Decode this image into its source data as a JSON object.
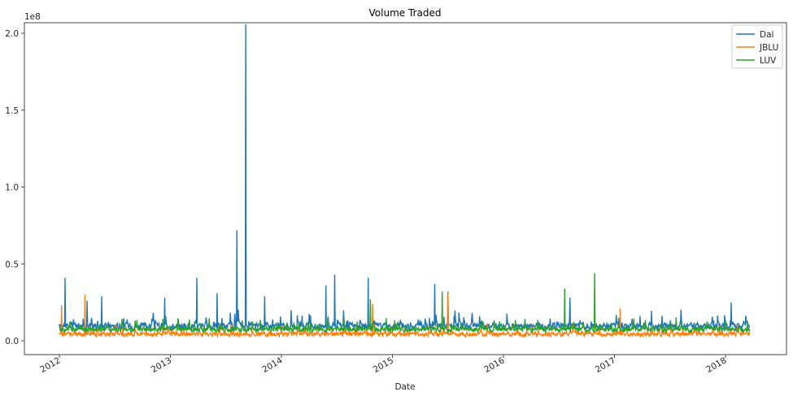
{
  "chart_data": {
    "type": "line",
    "title": "Volume Traded",
    "xlabel": "Date",
    "ylabel": "",
    "y_scale_label": "1e8",
    "ylim": [
      -0.1,
      2.18
    ],
    "xlim": [
      "2011-10",
      "2018-07"
    ],
    "yticks": [
      "0.0",
      "0.5",
      "1.0",
      "1.5",
      "2.0"
    ],
    "xticks": [
      "2012",
      "2013",
      "2014",
      "2015",
      "2016",
      "2017",
      "2018"
    ],
    "grid": false,
    "legend_position": "upper right",
    "series": [
      {
        "name": "Dal",
        "color": "#1f77b4",
        "baseline": 0.09,
        "noise": 0.06,
        "spikes": [
          [
            2012.05,
            0.41
          ],
          [
            2012.25,
            0.26
          ],
          [
            2012.38,
            0.29
          ],
          [
            2012.95,
            0.28
          ],
          [
            2013.24,
            0.41
          ],
          [
            2013.42,
            0.31
          ],
          [
            2013.6,
            0.72
          ],
          [
            2013.68,
            2.06
          ],
          [
            2013.85,
            0.29
          ],
          [
            2014.4,
            0.36
          ],
          [
            2014.48,
            0.43
          ],
          [
            2014.78,
            0.41
          ],
          [
            2015.38,
            0.37
          ],
          [
            2015.5,
            0.32
          ],
          [
            2016.6,
            0.28
          ],
          [
            2018.05,
            0.25
          ]
        ]
      },
      {
        "name": "JBLU",
        "color": "#ff7f0e",
        "baseline": 0.04,
        "noise": 0.04,
        "spikes": [
          [
            2012.02,
            0.23
          ],
          [
            2012.23,
            0.3
          ],
          [
            2014.82,
            0.24
          ],
          [
            2015.5,
            0.31
          ],
          [
            2017.05,
            0.21
          ]
        ]
      },
      {
        "name": "LUV",
        "color": "#2ca02c",
        "baseline": 0.07,
        "noise": 0.045,
        "spikes": [
          [
            2014.8,
            0.27
          ],
          [
            2015.45,
            0.32
          ],
          [
            2016.55,
            0.34
          ],
          [
            2016.82,
            0.44
          ],
          [
            2018.2,
            0.13
          ]
        ]
      }
    ]
  },
  "legend": {
    "items": [
      {
        "label": "Dal",
        "color": "#1f77b4"
      },
      {
        "label": "JBLU",
        "color": "#ff7f0e"
      },
      {
        "label": "LUV",
        "color": "#2ca02c"
      }
    ]
  }
}
